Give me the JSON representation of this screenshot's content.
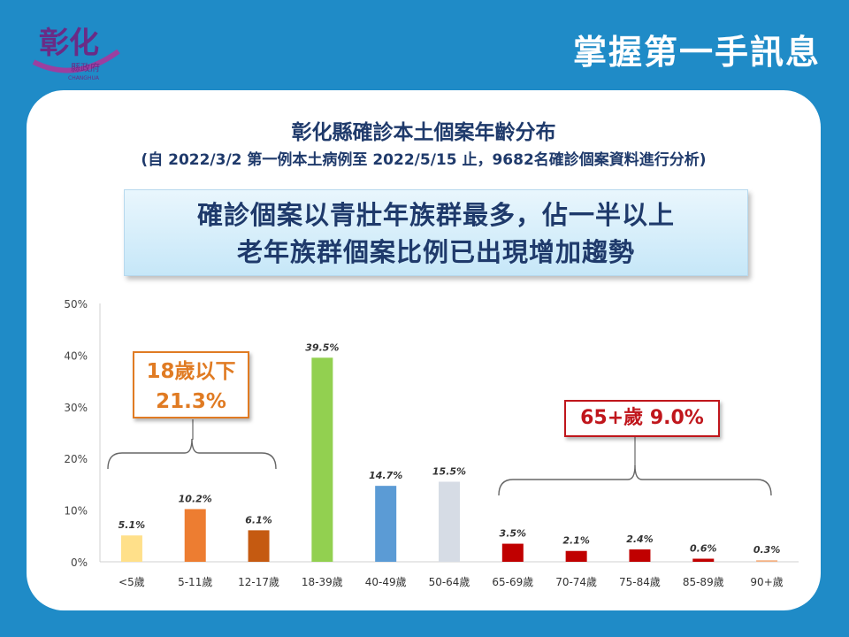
{
  "header": {
    "title": "掌握第一手訊息",
    "logo_text": "彰化",
    "logo_subtext": "縣政府",
    "logo_en": "CHANGHUA"
  },
  "chart_data": {
    "type": "bar",
    "title": "彰化縣確診本土個案年齡分布",
    "subtitle": "(自 2022/3/2 第一例本土病例至  2022/5/15 止，9682名確診個案資料進行分析)",
    "callout_lines": [
      "確診個案以青壯年族群最多，佔一半以上",
      "老年族群個案比例已出現增加趨勢"
    ],
    "categories": [
      "<5歲",
      "5-11歲",
      "12-17歲",
      "18-39歲",
      "40-49歲",
      "50-64歲",
      "65-69歲",
      "70-74歲",
      "75-84歲",
      "85-89歲",
      "90+歲"
    ],
    "values": [
      5.1,
      10.2,
      6.1,
      39.5,
      14.7,
      15.5,
      3.5,
      2.1,
      2.4,
      0.6,
      0.3
    ],
    "value_labels": [
      "5.1%",
      "10.2%",
      "6.1%",
      "39.5%",
      "14.7%",
      "15.5%",
      "3.5%",
      "2.1%",
      "2.4%",
      "0.6%",
      "0.3%"
    ],
    "colors": [
      "#ffe08a",
      "#ed7d31",
      "#c55a11",
      "#92d050",
      "#5b9bd5",
      "#d6dce5",
      "#c00000",
      "#c00000",
      "#c00000",
      "#c00000",
      "#f4b183"
    ],
    "ylim": [
      0,
      50
    ],
    "yticks": [
      "0%",
      "10%",
      "20%",
      "30%",
      "40%",
      "50%"
    ],
    "xlabel": "",
    "ylabel": "",
    "grid": false,
    "annotations": [
      {
        "line1": "18歲以下",
        "line2": "21.3%",
        "color": "#e07b23"
      },
      {
        "text": "65+歲 9.0%",
        "color": "#c0161c"
      }
    ]
  }
}
